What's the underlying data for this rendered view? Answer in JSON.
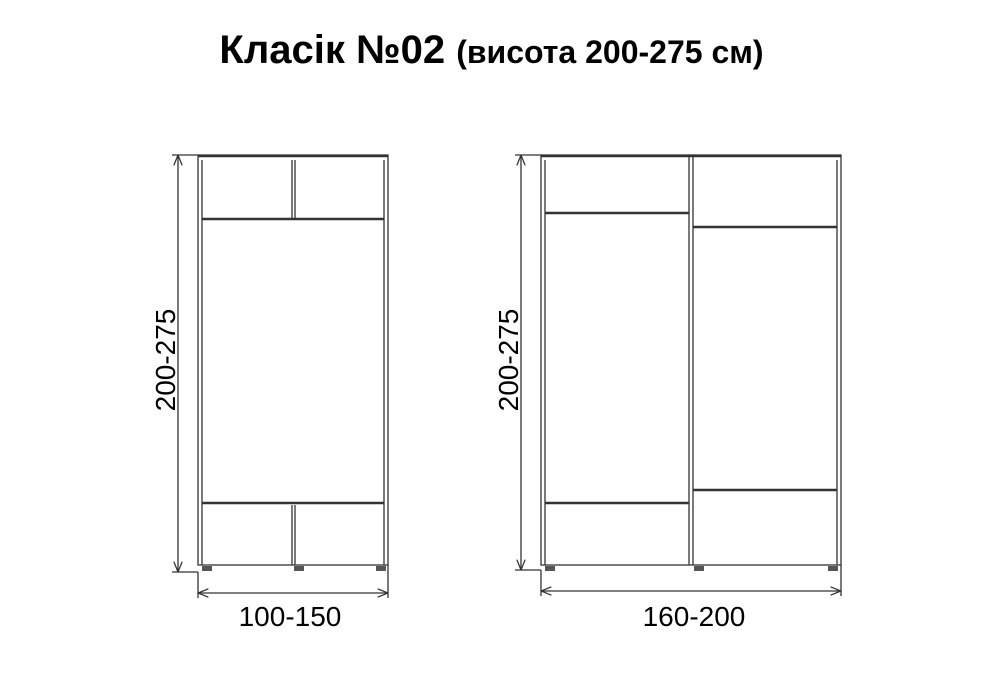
{
  "title": {
    "main": "Класік №02",
    "sub": "(висота 200-275 см)"
  },
  "wardrobes": [
    {
      "height_label": "200-275",
      "width_label": "100-150"
    },
    {
      "height_label": "200-275",
      "width_label": "160-200"
    }
  ]
}
